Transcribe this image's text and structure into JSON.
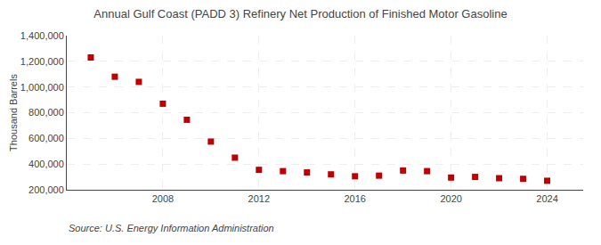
{
  "chart_data": {
    "type": "scatter",
    "title": "Annual Gulf Coast (PADD 3) Refinery Net Production of Finished Motor Gasoline",
    "ylabel": "Thousand Barrels",
    "annotations": [
      "Source: U.S. Energy Information Administration"
    ],
    "x": [
      2005,
      2006,
      2007,
      2008,
      2009,
      2010,
      2011,
      2012,
      2013,
      2014,
      2015,
      2016,
      2017,
      2018,
      2019,
      2020,
      2021,
      2022,
      2023,
      2024
    ],
    "values": [
      1230000,
      1080000,
      1040000,
      870000,
      745000,
      575000,
      450000,
      355000,
      345000,
      335000,
      320000,
      305000,
      310000,
      350000,
      345000,
      295000,
      300000,
      290000,
      285000,
      270000
    ],
    "color": "#c00000",
    "marker": "square",
    "xlim": [
      2004,
      2025.5
    ],
    "xticks": [
      2008,
      2012,
      2016,
      2020,
      2024
    ],
    "ylim": [
      200000,
      1400000
    ],
    "yticks": [
      {
        "value": 200000,
        "label": "200,000"
      },
      {
        "value": 400000,
        "label": "400,000"
      },
      {
        "value": 600000,
        "label": "600,000"
      },
      {
        "value": 800000,
        "label": "800,000"
      },
      {
        "value": 1000000,
        "label": "1,000,000"
      },
      {
        "value": 1200000,
        "label": "1,200,000"
      },
      {
        "value": 1400000,
        "label": "1,400,000"
      }
    ],
    "grid": true
  }
}
